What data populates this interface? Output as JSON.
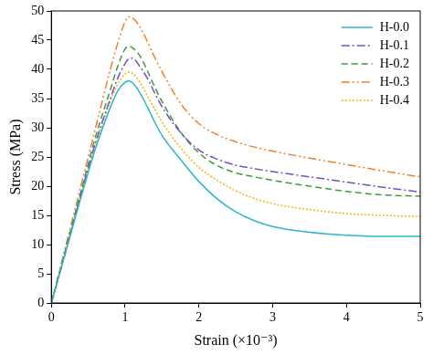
{
  "chart_data": {
    "type": "line",
    "x_label": "Strain (×10⁻³)",
    "y_label": "Stress (MPa)",
    "x": [
      0,
      0.2,
      0.4,
      0.6,
      0.8,
      0.9,
      1.0,
      1.05,
      1.1,
      1.2,
      1.3,
      1.4,
      1.5,
      1.75,
      2.0,
      2.25,
      2.5,
      2.75,
      3.0,
      3.5,
      4.0,
      4.5,
      5.0
    ],
    "series": [
      {
        "name": "H-0.0",
        "color": "#2ab6cc",
        "line_style": "solid",
        "values": [
          0,
          9,
          18,
          26.5,
          33.5,
          36.3,
          37.8,
          38,
          37.7,
          36,
          33.6,
          31,
          28.7,
          24.6,
          20.8,
          17.8,
          15.6,
          14.1,
          13.1,
          12.1,
          11.6,
          11.4,
          11.4
        ]
      },
      {
        "name": "H-0.1",
        "color": "#7b4fc4",
        "line_style": "dashdot",
        "values": [
          0,
          9,
          18.5,
          27.5,
          35,
          38.5,
          41,
          41.8,
          41.9,
          40.5,
          38.5,
          36,
          33.6,
          29.2,
          26.2,
          24.6,
          23.6,
          23,
          22.5,
          21.6,
          20.7,
          19.8,
          19
        ]
      },
      {
        "name": "H-0.2",
        "color": "#3a9e3a",
        "line_style": "dashed",
        "values": [
          0,
          9.5,
          19,
          28.5,
          36.5,
          40.5,
          43.5,
          44,
          43.7,
          42.3,
          39.8,
          37,
          34.5,
          29.3,
          25.7,
          23.5,
          22.3,
          21.6,
          21,
          20,
          19.1,
          18.5,
          18.3
        ]
      },
      {
        "name": "H-0.3",
        "color": "#f0802a",
        "line_style": "dashdotdot",
        "values": [
          0,
          10,
          20,
          30,
          40,
          44.5,
          48.2,
          49,
          48.8,
          47.3,
          44.8,
          42.1,
          39.6,
          34.2,
          30.7,
          28.8,
          27.6,
          26.7,
          26,
          24.8,
          23.7,
          22.6,
          21.6
        ]
      },
      {
        "name": "H-0.4",
        "color": "#f2b400",
        "line_style": "dotted",
        "values": [
          0,
          9,
          18.5,
          27,
          34.5,
          37.5,
          39.2,
          39.5,
          39.3,
          37.8,
          35.5,
          33.2,
          31,
          26.6,
          23.2,
          21,
          19.2,
          17.9,
          17,
          16,
          15.3,
          15,
          14.8
        ]
      }
    ],
    "xlim": [
      0,
      5
    ],
    "xticks": [
      0,
      1,
      2,
      3,
      4,
      5
    ],
    "ylim": [
      0,
      50
    ],
    "yticks": [
      0,
      5,
      10,
      15,
      20,
      25,
      30,
      35,
      40,
      45,
      50
    ],
    "grid": false,
    "legend": "upper right"
  }
}
